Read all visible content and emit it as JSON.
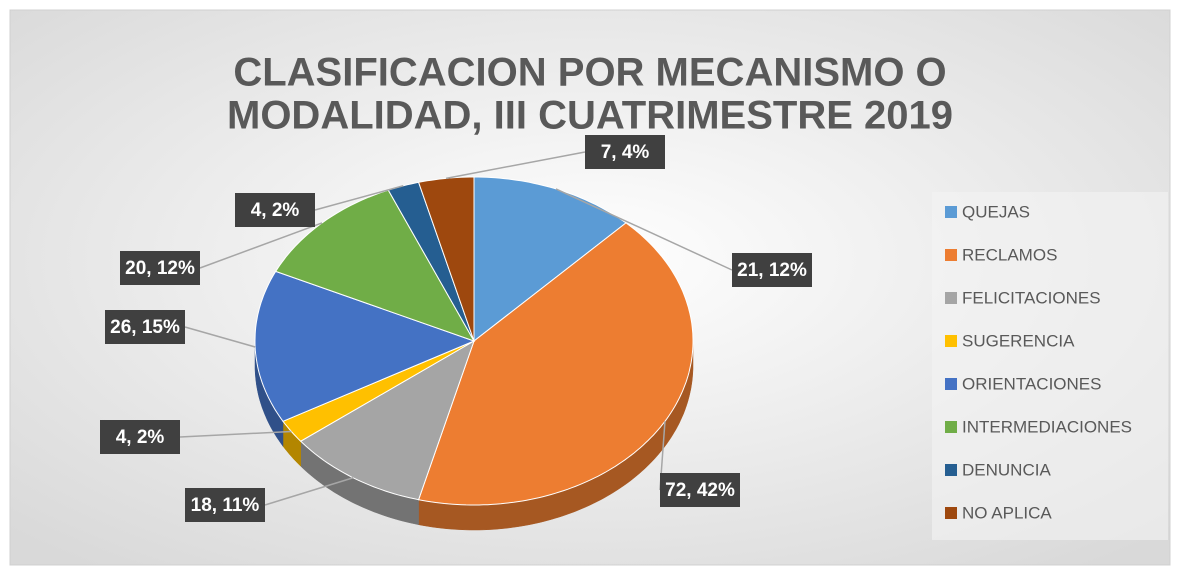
{
  "chart_data": {
    "type": "pie3d",
    "title": [
      "CLASIFICACION POR MECANISMO O",
      "MODALIDAD, III CUATRIMESTRE 2019"
    ],
    "categories": [
      "QUEJAS",
      "RECLAMOS",
      "FELICITACIONES",
      "SUGERENCIA",
      "ORIENTACIONES",
      "INTERMEDIACIONES",
      "DENUNCIA",
      "NO APLICA"
    ],
    "values": [
      21,
      72,
      18,
      4,
      26,
      20,
      4,
      7
    ],
    "value_labels": [
      "21, 12%",
      "72, 42%",
      "18, 11%",
      "4, 2%",
      "26, 15%",
      "20, 12%",
      "4, 2%",
      "7, 4%"
    ],
    "colors": [
      "#5B9BD5",
      "#ED7D31",
      "#A5A5A5",
      "#FFC000",
      "#4472C4",
      "#70AD47",
      "#255E91",
      "#9E480E"
    ],
    "legend": "right"
  }
}
